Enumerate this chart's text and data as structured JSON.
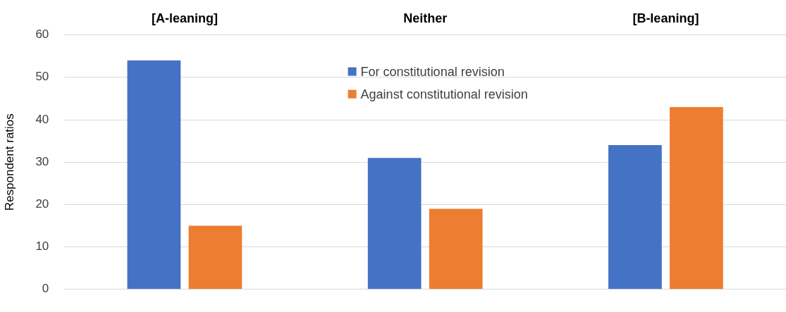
{
  "chart_data": {
    "type": "bar",
    "ylabel": "Respondent ratios",
    "categories": [
      "[A-leaning]",
      "Neither",
      "[B-leaning]"
    ],
    "series": [
      {
        "name": "For constitutional revision",
        "color": "#4472c4",
        "values": [
          54,
          31,
          34
        ]
      },
      {
        "name": "Against constitutional revision",
        "color": "#ed7d31",
        "values": [
          15,
          19,
          43
        ]
      }
    ],
    "ylim": [
      0,
      60
    ],
    "yticks": [
      0,
      10,
      20,
      30,
      40,
      50,
      60
    ],
    "grid": "y",
    "legend": "top"
  }
}
